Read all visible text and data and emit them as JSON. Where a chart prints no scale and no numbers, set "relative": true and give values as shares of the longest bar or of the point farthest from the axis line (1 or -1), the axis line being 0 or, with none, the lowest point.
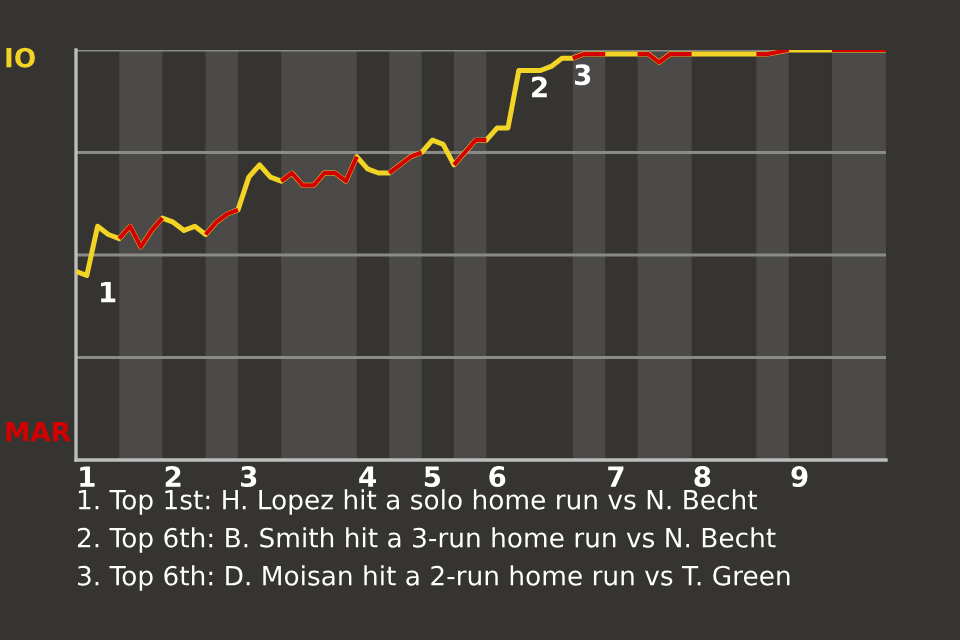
{
  "chart_data": {
    "type": "line",
    "relative": true,
    "categories": [
      null,
      "1",
      null,
      null,
      null,
      null,
      null,
      null,
      null,
      "2",
      null,
      null,
      null,
      null,
      null,
      null,
      "3",
      null,
      null,
      null,
      null,
      null,
      null,
      null,
      null,
      null,
      null,
      "4",
      null,
      null,
      null,
      null,
      null,
      "5",
      null,
      null,
      null,
      null,
      null,
      "6",
      null,
      null,
      null,
      null,
      null,
      null,
      null,
      null,
      null,
      null,
      "7",
      null,
      null,
      null,
      null,
      null,
      null,
      null,
      "8",
      null,
      null,
      null,
      null,
      null,
      null,
      null,
      null,
      "9",
      null,
      null,
      null,
      null,
      null,
      null,
      null,
      null
    ],
    "marker": "none",
    "line_style": "solid",
    "series": [
      {
        "color": "#f2d425",
        "values": [
          0.46,
          0.45,
          0.57,
          0.55,
          0.54,
          0.57,
          0.52,
          0.56,
          0.59,
          0.58,
          0.56,
          0.57,
          0.55,
          0.58,
          0.6,
          0.61,
          0.69,
          0.72,
          0.69,
          0.68,
          0.7,
          0.67,
          0.67,
          0.7,
          0.7,
          0.68,
          0.74,
          0.71,
          0.7,
          0.7,
          0.72,
          0.74,
          0.75,
          0.78,
          0.77,
          0.72,
          0.75,
          0.78,
          0.78,
          0.81,
          0.81,
          0.95,
          0.95,
          0.95,
          0.96,
          0.98,
          0.98,
          0.99,
          0.99,
          0.99,
          0.99,
          0.99,
          0.99,
          0.99,
          0.97,
          0.99,
          0.99,
          0.99,
          0.99,
          0.99,
          0.99,
          0.99,
          0.99,
          0.99,
          0.99,
          0.995,
          1,
          1,
          1,
          1,
          1,
          1,
          1,
          1,
          1,
          1
        ],
        "colors": [
          "#f2d425",
          "#f2d425",
          "#f2d425",
          "#f2d425",
          "#f2d425",
          "#d40000",
          "#d40000",
          "#d40000",
          "#d40000",
          "#f2d425",
          "#f2d425",
          "#f2d425",
          "#f2d425",
          "#d40000",
          "#d40000",
          "#d40000",
          "#f2d425",
          "#f2d425",
          "#f2d425",
          "#f2d425",
          "#d40000",
          "#d40000",
          "#d40000",
          "#d40000",
          "#d40000",
          "#d40000",
          "#d40000",
          "#f2d425",
          "#f2d425",
          "#f2d425",
          "#d40000",
          "#d40000",
          "#d40000",
          "#f2d425",
          "#f2d425",
          "#f2d425",
          "#d40000",
          "#d40000",
          "#d40000",
          "#f2d425",
          "#f2d425",
          "#f2d425",
          "#f2d425",
          "#f2d425",
          "#f2d425",
          "#f2d425",
          "#f2d425",
          "#d40000",
          "#d40000",
          "#d40000",
          "#f2d425",
          "#f2d425",
          "#f2d425",
          "#d40000",
          "#d40000",
          "#d40000",
          "#d40000",
          "#d40000",
          "#f2d425",
          "#f2d425",
          "#f2d425",
          "#f2d425",
          "#f2d425",
          "#f2d425",
          "#d40000",
          "#d40000",
          "#d40000",
          "#f2d425",
          "#f2d425",
          "#f2d425",
          "#f2d425",
          "#d40000",
          "#d40000",
          "#d40000",
          "#d40000",
          "#d40000"
        ]
      }
    ],
    "ref_lines": [
      {
        "axis": "y",
        "value": 0.25,
        "color": "#8a8a88"
      },
      {
        "axis": "y",
        "value": 0.5,
        "color": "#8a8a88"
      },
      {
        "axis": "y",
        "value": 0.75,
        "color": "#8a8a88"
      },
      {
        "axis": "y",
        "value": 1,
        "color": "#8a8a88"
      }
    ],
    "annotations": [
      "IO",
      "MAR",
      {
        "text": "1",
        "x": "1",
        "y": 0.45
      },
      {
        "text": "2",
        "y": 0.95
      },
      {
        "text": "3",
        "y": 0.98
      },
      "1. Top 1st: H. Lopez hit a solo home run vs N. Becht",
      "2. Top 6th: B. Smith hit a 3-run home run vs N. Becht",
      "3. Top 6th: D. Moisan hit a 2-run home run vs T. Green"
    ]
  }
}
